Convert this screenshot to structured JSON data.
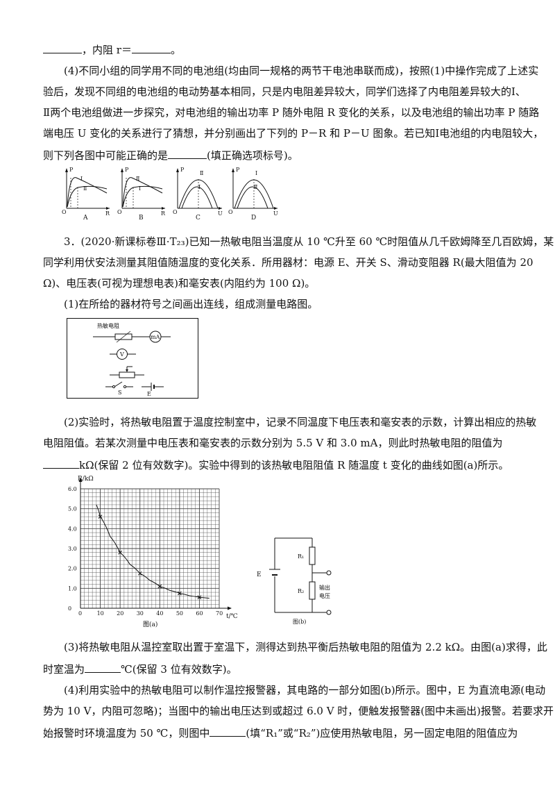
{
  "lines": {
    "l1_post": "，内阻 r＝",
    "l1_end": "。",
    "p4_1": "(4)不同小组的同学用不同的电池组(均由同一规格的两节干电池串联而成)，按照(1)中操作完成了上述实",
    "p4_2": "验后，发现不同组的电池组的电动势基本相同，只是内电阻差异较大，同学们选择了内电阻差异较大的Ⅰ、",
    "p4_3": "Ⅱ两个电池组做进一步探究，对电池组的输出功率 P 随外电阻 R 变化的关系，以及电池组的输出功率 P 随路",
    "p4_4": "端电压 U 变化的关系进行了猜想，并分别画出了下列的 P－R 和 P－U 图象。若已知Ⅰ电池组的内电阻较大，",
    "p4_5a": "则下列各图中可能正确的是",
    "p4_5b": "(填正确选项标号)。",
    "q3_1": "3．(2020·新课标卷Ⅲ·T₂₃)已知一热敏电阻当温度从 10 ℃升至 60 ℃时阻值从几千欧姆降至几百欧姆，某",
    "q3_2": "同学利用伏安法测量其阻值随温度的变化关系．所用器材：电源 E、开关 S、滑动变阻器 R(最大阻值为 20",
    "q3_3": "Ω)、电压表(可视为理想电表)和毫安表(内阻约为 100 Ω)。",
    "q3_p1": "(1)在所给的器材符号之间画出连线，组成测量电路图。",
    "q3_p2_1": "(2)实验时，将热敏电阻置于温度控制室中，记录不同温度下电压表和毫安表的示数，计算出相应的热敏",
    "q3_p2_2": "电阻阻值。若某次测量中电压表和毫安表的示数分别为 5.5 V 和 3.0 mA，则此时热敏电阻的阻值为",
    "q3_p2_3": "kΩ(保留 2 位有效数字)。实验中得到的该热敏电阻阻值 R 随温度 t 变化的曲线如图(a)所示。",
    "q3_p3_1": "(3)将热敏电阻从温控室取出置于室温下，测得达到热平衡后热敏电阻的阻值为 2.2 kΩ。由图(a)求得，此",
    "q3_p3_2a": "时室温为",
    "q3_p3_2b": "℃(保留 3 位有效数字)。",
    "q3_p4_1": "(4)利用实验中的热敏电阻可以制作温控报警器，其电路的一部分如图(b)所示。图中，E 为直流电源(电动",
    "q3_p4_2": "势为 10 V，内阻可忽略)；当图中的输出电压达到或超过 6.0 V 时，便触发报警器(图中未画出)报警。若要求开",
    "q3_p4_3a": "始报警时环境温度为 50 ℃，则图中",
    "q3_p4_3b": "(填“R₁”或“R₂”)应使用热敏电阻，另一固定电阻的阻值应为"
  },
  "options": [
    {
      "letter": "A",
      "xlabel": "R",
      "curves": [
        "Ⅰ",
        "Ⅱ"
      ]
    },
    {
      "letter": "B",
      "xlabel": "R",
      "curves": [
        "Ⅱ",
        "Ⅰ"
      ]
    },
    {
      "letter": "C",
      "xlabel": "U",
      "curves": [
        "Ⅱ",
        "Ⅰ"
      ]
    },
    {
      "letter": "D",
      "xlabel": "U",
      "curves": [
        "Ⅰ",
        "Ⅱ"
      ]
    }
  ],
  "option_axis": {
    "ylabel": "P",
    "origin": "O"
  },
  "circuit_box": {
    "thermistor_label": "热敏电阻",
    "ma_label": "mA",
    "v_label": "V",
    "s_label": "S",
    "e_label": "E"
  },
  "chart_data": {
    "type": "scatter",
    "title": "图(a)",
    "xlabel": "t/℃",
    "ylabel": "R/kΩ",
    "xlim": [
      0,
      70
    ],
    "ylim": [
      0,
      6.0
    ],
    "xticks": [
      0,
      10,
      20,
      30,
      40,
      50,
      60,
      70
    ],
    "yticks": [
      0,
      1.0,
      2.0,
      3.0,
      4.0,
      5.0,
      6.0
    ],
    "ytick_labels": [
      "0",
      "1.0",
      "2.0",
      "3.0",
      "4.0",
      "5.0",
      "6.0"
    ],
    "grid": true,
    "points": [
      {
        "x": 10,
        "y": 4.6
      },
      {
        "x": 20,
        "y": 2.8
      },
      {
        "x": 30,
        "y": 1.75
      },
      {
        "x": 40,
        "y": 1.1
      },
      {
        "x": 50,
        "y": 0.75
      },
      {
        "x": 60,
        "y": 0.55
      }
    ],
    "curve": [
      {
        "x": 8,
        "y": 5.2
      },
      {
        "x": 10,
        "y": 4.6
      },
      {
        "x": 15,
        "y": 3.6
      },
      {
        "x": 20,
        "y": 2.8
      },
      {
        "x": 25,
        "y": 2.2
      },
      {
        "x": 30,
        "y": 1.75
      },
      {
        "x": 35,
        "y": 1.4
      },
      {
        "x": 40,
        "y": 1.1
      },
      {
        "x": 45,
        "y": 0.9
      },
      {
        "x": 50,
        "y": 0.75
      },
      {
        "x": 55,
        "y": 0.63
      },
      {
        "x": 60,
        "y": 0.55
      },
      {
        "x": 65,
        "y": 0.5
      }
    ]
  },
  "figure_b": {
    "caption": "图(b)",
    "e_label": "E",
    "r1_label": "R₁",
    "r2_label": "R₂",
    "output_label_1": "输出",
    "output_label_2": "电压"
  }
}
